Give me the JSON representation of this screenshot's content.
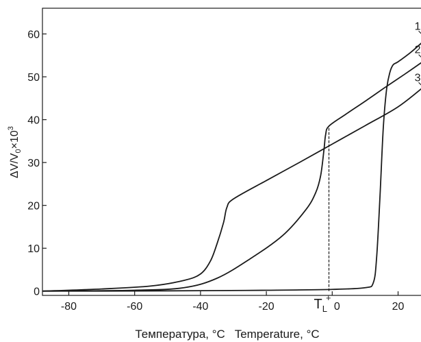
{
  "chart_data": {
    "type": "line",
    "xlabel": "Температура, °C   Temperature, °C",
    "ylabel": {
      "main": "ΔV/V",
      "sub": "0",
      "mult": "×10",
      "sup": "3"
    },
    "xlim": [
      -88,
      28
    ],
    "ylim": [
      -1,
      66
    ],
    "x_ticks": [
      -80,
      -60,
      -40,
      -20,
      0,
      20
    ],
    "x_tick_labels": [
      "-80",
      "-60",
      "-40",
      "-20",
      "0",
      "20"
    ],
    "y_ticks": [
      0,
      10,
      20,
      30,
      40,
      50,
      60
    ],
    "y_tick_labels": [
      "0",
      "10",
      "20",
      "30",
      "40",
      "50",
      "60"
    ],
    "grid": false,
    "series": [
      {
        "name": "1",
        "x": [
          -88,
          -70,
          -40,
          -20,
          0,
          10,
          12.5,
          13.5,
          14.5,
          15.5,
          16.5,
          17.5,
          18.5,
          20,
          24,
          28
        ],
        "y": [
          0,
          0,
          0.1,
          0.2,
          0.4,
          0.8,
          2,
          8,
          22,
          38,
          47,
          51,
          52.8,
          53.5,
          55.8,
          58.5
        ]
      },
      {
        "name": "2",
        "x": [
          -88,
          -60,
          -45,
          -35,
          -25,
          -15,
          -8,
          -5,
          -3.5,
          -2.5,
          -2,
          -1,
          4,
          10,
          16,
          22,
          28
        ],
        "y": [
          0,
          0.2,
          0.8,
          3,
          7.5,
          13,
          19,
          23,
          27,
          33,
          36.5,
          38.5,
          41.2,
          44.3,
          47.5,
          50.6,
          53.8
        ]
      },
      {
        "name": "3",
        "x": [
          -88,
          -70,
          -55,
          -45,
          -40,
          -37,
          -35,
          -33,
          -32,
          -30,
          -20,
          -10,
          0,
          10,
          20,
          28
        ],
        "y": [
          0,
          0.5,
          1.2,
          2.5,
          4,
          7,
          11,
          16,
          19.5,
          21.5,
          25.8,
          30,
          34.3,
          38.6,
          43,
          47.8
        ]
      }
    ],
    "curve_labels": [
      {
        "text": "1",
        "x": 25,
        "y": 61
      },
      {
        "text": "2",
        "x": 25,
        "y": 55.5
      },
      {
        "text": "3",
        "x": 25,
        "y": 49
      }
    ],
    "annotation": {
      "text": "T",
      "sub": "L",
      "sup": "+",
      "x": -1,
      "y_from": 0,
      "y_to": 38.5
    }
  }
}
